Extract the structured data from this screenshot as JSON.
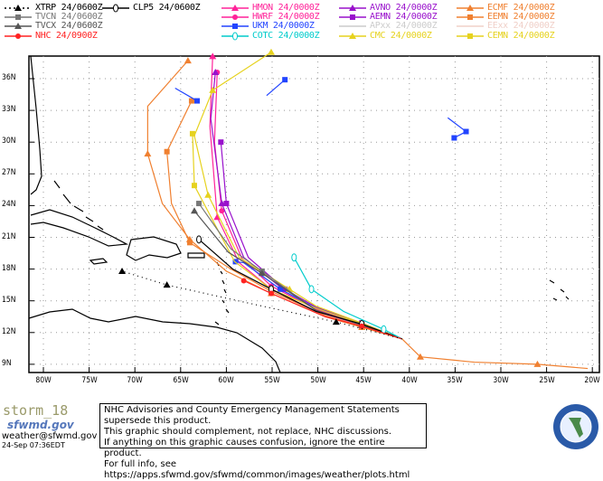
{
  "legend": [
    {
      "label": "XTRP 24/0600Z",
      "color": "#000000",
      "marker": "triangle",
      "dash": true
    },
    {
      "label": "TVCN 24/0600Z",
      "color": "#777777",
      "marker": "square"
    },
    {
      "label": "TVCX 24/0600Z",
      "color": "#555555",
      "marker": "triangle"
    },
    {
      "label": "NHC 24/0900Z",
      "color": "#ff2222",
      "marker": "circle"
    },
    {
      "label": "CLP5 24/0600Z",
      "color": "#000000",
      "marker": "theta"
    },
    {
      "label": "HMON 24/0000Z",
      "color": "#ff2299",
      "marker": "triangle"
    },
    {
      "label": "HWRF 24/0000Z",
      "color": "#ff2299",
      "marker": "circle"
    },
    {
      "label": "UKM  24/0000Z",
      "color": "#2244ff",
      "marker": "square"
    },
    {
      "label": "COTC 24/0000Z",
      "color": "#00cccc",
      "marker": "theta"
    },
    {
      "label": "AVNO 24/0000Z",
      "color": "#9911cc",
      "marker": "triangle"
    },
    {
      "label": "AEMN 24/0000Z",
      "color": "#9911cc",
      "marker": "square"
    },
    {
      "label": "APxx  24/0000Z",
      "color": "#cccccc",
      "marker": "none"
    },
    {
      "label": "CMC  24/0000Z",
      "color": "#e6d21e",
      "marker": "triangle"
    },
    {
      "label": "ECMF 24/0000Z",
      "color": "#f08030",
      "marker": "triangle"
    },
    {
      "label": "EEMN 24/0000Z",
      "color": "#f08030",
      "marker": "square"
    },
    {
      "label": "EExx  24/0000Z",
      "color": "#f0d0c8",
      "marker": "none"
    },
    {
      "label": "CEMN 24/0000Z",
      "color": "#e6d21e",
      "marker": "square"
    }
  ],
  "map": {
    "lat_labels": [
      "36N",
      "33N",
      "30N",
      "27N",
      "24N",
      "21N",
      "18N",
      "15N",
      "12N",
      "9N"
    ],
    "lon_labels": [
      "80W",
      "75W",
      "70W",
      "65W",
      "60W",
      "55W",
      "50W",
      "45W",
      "40W",
      "35W",
      "30W",
      "25W",
      "20W"
    ],
    "lon_range": [
      -80,
      -20
    ],
    "lat_range": [
      9,
      36
    ],
    "tracks": [
      {
        "model": "ECMF",
        "color": "#f08030",
        "marker": "triangle",
        "points": [
          [
            -20.5,
            8.6
          ],
          [
            -26,
            9
          ],
          [
            -32.9,
            9.2
          ],
          [
            -38.8,
            9.7
          ],
          [
            -40.8,
            11.4
          ],
          [
            -45.2,
            12.5
          ],
          [
            -49.2,
            13.5
          ],
          [
            -55.1,
            15.7
          ],
          [
            -60,
            17.8
          ],
          [
            -64,
            20.8
          ],
          [
            -67,
            24.2
          ],
          [
            -68.6,
            28.9
          ],
          [
            -68.6,
            33.4
          ],
          [
            -64.2,
            37.7
          ]
        ]
      },
      {
        "model": "EEMN",
        "color": "#f08030",
        "marker": "square",
        "points": [
          [
            -40.8,
            11.4
          ],
          [
            -45.2,
            12.6
          ],
          [
            -49.2,
            13.6
          ],
          [
            -55.1,
            15.9
          ],
          [
            -59.5,
            18
          ],
          [
            -64,
            20.5
          ],
          [
            -66,
            24.2
          ],
          [
            -66.5,
            29.1
          ],
          [
            -63.8,
            33.9
          ]
        ]
      },
      {
        "model": "HMON",
        "color": "#ff2299",
        "marker": "triangle",
        "points": [
          [
            -40.8,
            11.4
          ],
          [
            -45.2,
            12.7
          ],
          [
            -50.2,
            14
          ],
          [
            -55.1,
            16.1
          ],
          [
            -58.6,
            18.6
          ],
          [
            -61,
            22.9
          ],
          [
            -61.8,
            31.5
          ],
          [
            -61.5,
            38.1
          ]
        ]
      },
      {
        "model": "HWRF",
        "color": "#ff2299",
        "marker": "circle",
        "points": [
          [
            -40.8,
            11.4
          ],
          [
            -45.2,
            12.8
          ],
          [
            -50.2,
            14.2
          ],
          [
            -55.1,
            16.4
          ],
          [
            -58.3,
            19
          ],
          [
            -60.5,
            23.5
          ],
          [
            -61.3,
            30
          ],
          [
            -61,
            36.6
          ]
        ]
      },
      {
        "model": "AVNO",
        "color": "#9911cc",
        "marker": "triangle",
        "points": [
          [
            -40.8,
            11.4
          ],
          [
            -45.2,
            12.9
          ],
          [
            -50.2,
            14.4
          ],
          [
            -54.1,
            16.3
          ],
          [
            -58.1,
            19.1
          ],
          [
            -60.5,
            24.2
          ],
          [
            -61.7,
            32.2
          ],
          [
            -61.2,
            36.6
          ]
        ]
      },
      {
        "model": "AEMN",
        "color": "#9911cc",
        "marker": "square",
        "points": [
          [
            -40.8,
            11.4
          ],
          [
            -45.2,
            12.9
          ],
          [
            -50.2,
            14.4
          ],
          [
            -53.6,
            16.1
          ],
          [
            -57.6,
            19.1
          ],
          [
            -60,
            24.2
          ],
          [
            -60.6,
            30
          ]
        ]
      },
      {
        "model": "UKM",
        "color": "#2244ff",
        "marker": "square",
        "points": [
          [
            -40.8,
            11.4
          ],
          [
            -45.2,
            12.8
          ],
          [
            -50.2,
            14.3
          ],
          [
            -54.1,
            16.1
          ],
          [
            -58.1,
            18.6
          ],
          [
            -59,
            18.7
          ]
        ]
      },
      {
        "model": "UKM",
        "color": "#2244ff",
        "marker": "square",
        "points": [
          [
            -65.6,
            35.1
          ],
          [
            -63.2,
            33.9
          ]
        ]
      },
      {
        "model": "UKM",
        "color": "#2244ff",
        "marker": "square",
        "points": [
          [
            -55.6,
            34.4
          ],
          [
            -53.6,
            35.9
          ]
        ]
      },
      {
        "model": "UKM",
        "color": "#2244ff",
        "marker": "square",
        "points": [
          [
            -35.8,
            32.3
          ],
          [
            -33.8,
            31
          ],
          [
            -35.1,
            30.4
          ]
        ]
      },
      {
        "model": "CMC",
        "color": "#e6d21e",
        "marker": "triangle",
        "points": [
          [
            -40.8,
            11.4
          ],
          [
            -45.2,
            12.9
          ],
          [
            -50.2,
            14.5
          ],
          [
            -53.1,
            16.1
          ],
          [
            -58.6,
            19.1
          ],
          [
            -62,
            25
          ],
          [
            -63.5,
            30.6
          ],
          [
            -61.5,
            34.9
          ],
          [
            -55.1,
            38.5
          ]
        ]
      },
      {
        "model": "CEMN",
        "color": "#e6d21e",
        "marker": "square",
        "points": [
          [
            -40.8,
            11.4
          ],
          [
            -45.2,
            12.8
          ],
          [
            -50.2,
            14.3
          ],
          [
            -55.1,
            16.1
          ],
          [
            -59.1,
            18.7
          ],
          [
            -63.5,
            25.9
          ],
          [
            -63.7,
            30.8
          ]
        ]
      },
      {
        "model": "TVCN",
        "color": "#777777",
        "marker": "square",
        "points": [
          [
            -40.8,
            11.4
          ],
          [
            -45.2,
            12.7
          ],
          [
            -50.2,
            14.1
          ],
          [
            -56.1,
            17.8
          ],
          [
            -59.5,
            19.9
          ],
          [
            -63,
            24.2
          ]
        ]
      },
      {
        "model": "TVCX",
        "color": "#555555",
        "marker": "triangle",
        "points": [
          [
            -40.8,
            11.4
          ],
          [
            -45.2,
            12.7
          ],
          [
            -50.2,
            14.1
          ],
          [
            -56.1,
            17.6
          ],
          [
            -59.8,
            19.6
          ],
          [
            -63.5,
            23.5
          ]
        ]
      },
      {
        "model": "CLP5",
        "color": "#000000",
        "marker": "theta",
        "points": [
          [
            -40.8,
            11.4
          ],
          [
            -45.2,
            12.8
          ],
          [
            -50.2,
            14
          ],
          [
            -55.1,
            16.1
          ],
          [
            -59.3,
            18
          ],
          [
            -63,
            20.8
          ]
        ]
      },
      {
        "model": "COTC",
        "color": "#00cccc",
        "marker": "theta",
        "points": [
          [
            -40.8,
            11.4
          ],
          [
            -42.8,
            12.3
          ],
          [
            -47.2,
            14
          ],
          [
            -50.7,
            16.1
          ],
          [
            -52.6,
            19.1
          ]
        ]
      },
      {
        "model": "NHC",
        "color": "#ff2222",
        "marker": "circle",
        "points": [
          [
            -40.8,
            11.4
          ],
          [
            -45.2,
            12.6
          ],
          [
            -49.2,
            13.5
          ],
          [
            -55.1,
            15.7
          ],
          [
            -58.1,
            16.9
          ]
        ]
      },
      {
        "model": "XTRP",
        "color": "#000000",
        "marker": "triangle",
        "dash": true,
        "points": [
          [
            -40.8,
            11.4
          ],
          [
            -48,
            13
          ],
          [
            -56.1,
            14.5
          ],
          [
            -66.5,
            16.5
          ],
          [
            -71.4,
            17.8
          ]
        ]
      }
    ]
  },
  "footer": {
    "storm": "storm_18",
    "site": "sfwmd.gov",
    "email": "weather@sfwmd.gov",
    "timestamp": "24-Sep 07:36EDT",
    "notice": [
      "NHC Advisories and County Emergency Management Statements supersede this product.",
      "This graphic should complement, not replace, NHC discussions.",
      "If anything on this graphic causes confusion, ignore the entire product.",
      "For full info, see  https://apps.sfwmd.gov/sfwmd/common/images/weather/plots.html"
    ],
    "seal_text": "SOUTH FLORIDA WATER MANAGEMENT DISTRICT"
  }
}
